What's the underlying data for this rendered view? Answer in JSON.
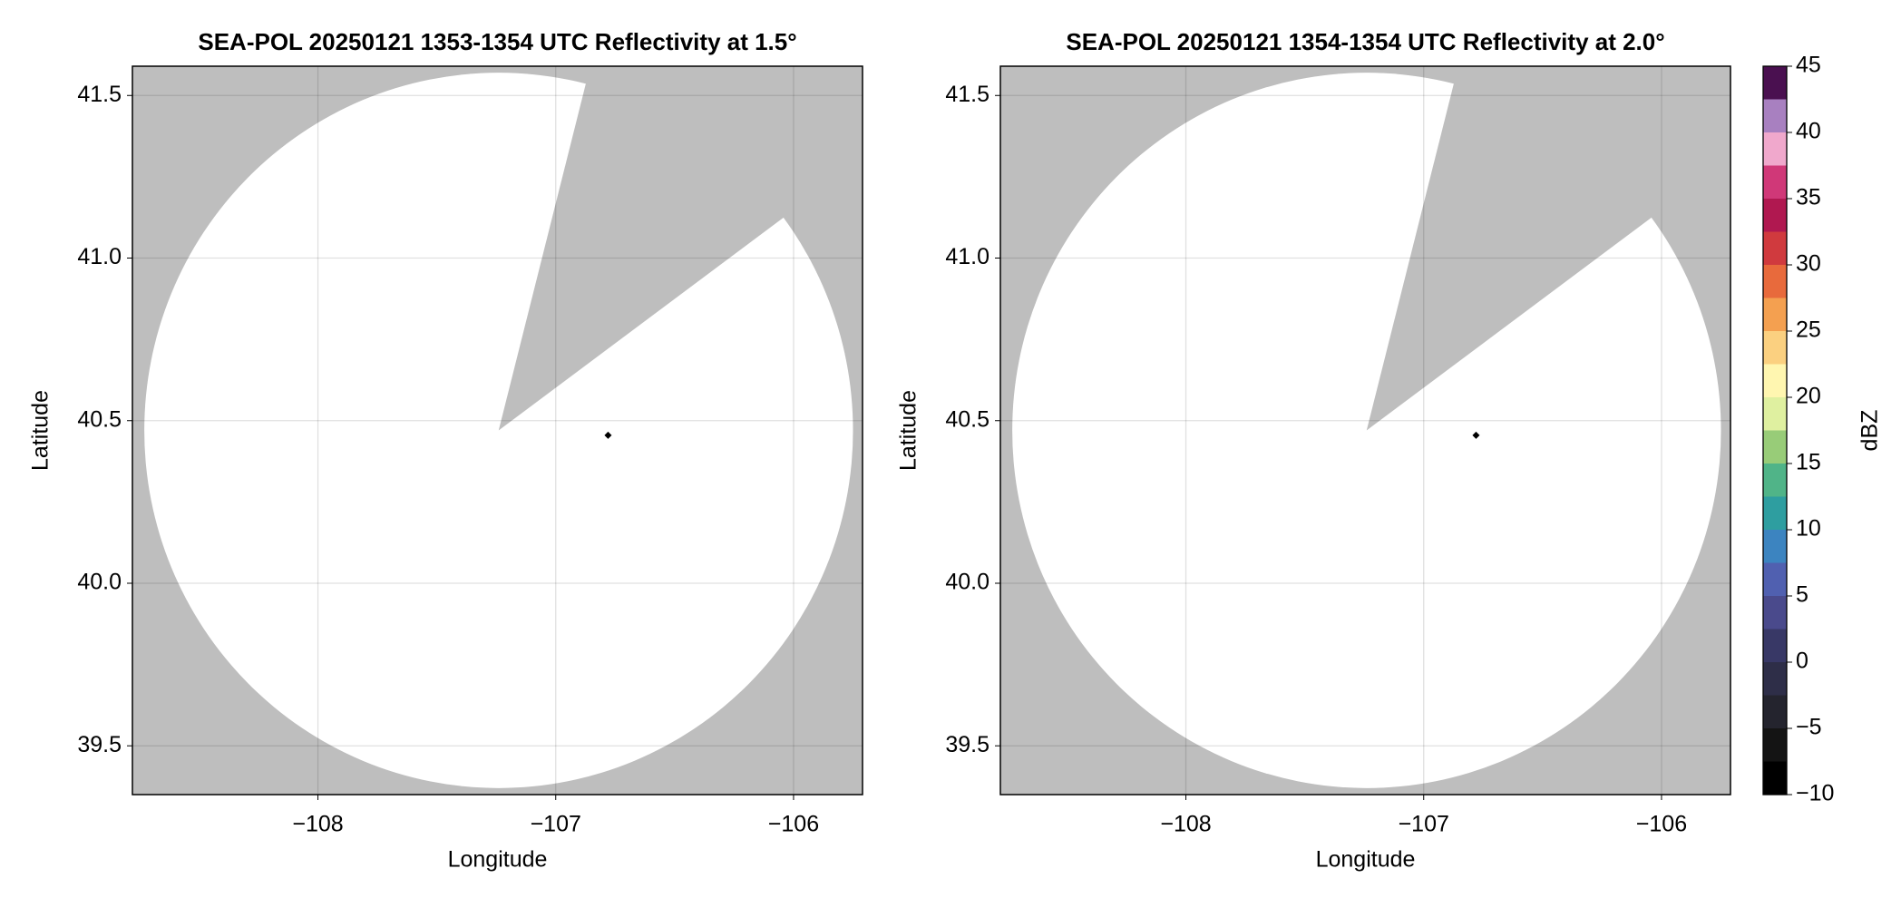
{
  "chart_data": [
    {
      "type": "radar-map",
      "title": "SEA-POL 20250121 1353-1354 UTC Reflectivity at 1.5°",
      "xlabel": "Longitude",
      "ylabel": "Latitude",
      "xlim": [
        -108.78,
        -105.71
      ],
      "ylim": [
        39.35,
        41.59
      ],
      "xticks": [
        {
          "value": -108,
          "label": "−108"
        },
        {
          "value": -107,
          "label": "−107"
        },
        {
          "value": -106,
          "label": "−106"
        }
      ],
      "yticks": [
        39.5,
        {
          "value": 40,
          "label": "40.0"
        },
        40.5,
        {
          "value": 41,
          "label": "41.0"
        },
        41.5
      ],
      "grid": true,
      "background_color": "#bebebe",
      "coverage_color": "#ffffff",
      "coverage": {
        "center": [
          -107.24,
          40.47
        ],
        "radius": [
          1.49,
          1.1
        ]
      },
      "gap_edges": [
        [
          -106.877,
          41.526
        ],
        [
          -106.056,
          41.117
        ]
      ],
      "marker": [
        -106.78,
        40.455
      ]
    },
    {
      "type": "radar-map",
      "title": "SEA-POL 20250121 1354-1354 UTC Reflectivity at 2.0°",
      "xlabel": "Longitude",
      "ylabel": "Latitude",
      "xlim": [
        -108.78,
        -105.71
      ],
      "ylim": [
        39.35,
        41.59
      ],
      "xticks": [
        {
          "value": -108,
          "label": "−108"
        },
        {
          "value": -107,
          "label": "−107"
        },
        {
          "value": -106,
          "label": "−106"
        }
      ],
      "yticks": [
        39.5,
        {
          "value": 40,
          "label": "40.0"
        },
        40.5,
        {
          "value": 41,
          "label": "41.0"
        },
        41.5
      ],
      "grid": true,
      "background_color": "#bebebe",
      "coverage_color": "#ffffff",
      "coverage": {
        "center": [
          -107.24,
          40.47
        ],
        "radius": [
          1.49,
          1.1
        ]
      },
      "gap_edges": [
        [
          -106.877,
          41.526
        ],
        [
          -106.056,
          41.117
        ]
      ],
      "marker": [
        -106.78,
        40.455
      ]
    },
    {
      "type": "colorbar",
      "label": "dBZ",
      "ylim": [
        -10,
        45
      ],
      "yticks": [
        {
          "value": -10,
          "label": "−10"
        },
        {
          "value": -5,
          "label": "−5"
        },
        0,
        5,
        10,
        15,
        20,
        25,
        30,
        35,
        40,
        45
      ],
      "bounds": [
        -10,
        -7.5,
        -5,
        -2.5,
        0,
        2.5,
        5,
        7.5,
        10,
        12.5,
        15,
        17.5,
        20,
        22.5,
        25,
        27.5,
        30,
        32.5,
        35,
        37.5,
        40,
        42.5,
        45
      ],
      "colors": [
        "#000000",
        "#141414",
        "#24242e",
        "#2e2e48",
        "#383866",
        "#4a4a8c",
        "#5060b0",
        "#3c84c0",
        "#2e9ea0",
        "#50b488",
        "#98cc78",
        "#dff0a0",
        "#fff6b0",
        "#fbd080",
        "#f4a050",
        "#e86a3c",
        "#d03a3e",
        "#b01850",
        "#d03878",
        "#f0a8cc",
        "#a880c0",
        "#4a1050"
      ]
    }
  ]
}
